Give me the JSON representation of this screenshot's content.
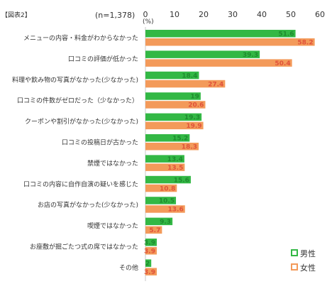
{
  "figure_label": "【図表2】",
  "sample_size": "(n=1,378)",
  "unit": "(%)",
  "chart_data": {
    "type": "bar",
    "orientation": "horizontal",
    "xlim": [
      0,
      60
    ],
    "ticks": [
      "0",
      "10",
      "20",
      "30",
      "40",
      "50",
      "60"
    ],
    "grid": false,
    "legend_position": "bottom-right",
    "categories": [
      "メニューの内容・料金がわからなかった",
      "口コミの評価が低かった",
      "料理や飲み物の写真がなかった(少なかった)",
      "口コミの件数がゼロだった（少なかった）",
      "クーポンや割引がなかった(少なかった)",
      "口コミの投稿日が古かった",
      "禁煙ではなかった",
      "口コミの内容に自作自演の疑いを感じた",
      "お店の写真がなかった(少なかった)",
      "喫煙ではなかった",
      "お座敷が掘ごたつ式の席ではなかった",
      "その他"
    ],
    "series": [
      {
        "name": "男性",
        "color": "#33b845",
        "label_color": "#1e8c2e",
        "values": [
          51.6,
          39.3,
          18.4,
          19.0,
          19.3,
          15.2,
          13.4,
          15.6,
          10.5,
          9.3,
          3.9,
          2.0
        ]
      },
      {
        "name": "女性",
        "color": "#f39a5a",
        "label_color": "#e0523a",
        "values": [
          58.2,
          50.4,
          27.4,
          20.6,
          19.9,
          18.3,
          13.5,
          10.8,
          13.6,
          5.7,
          3.9,
          3.9
        ]
      }
    ]
  }
}
